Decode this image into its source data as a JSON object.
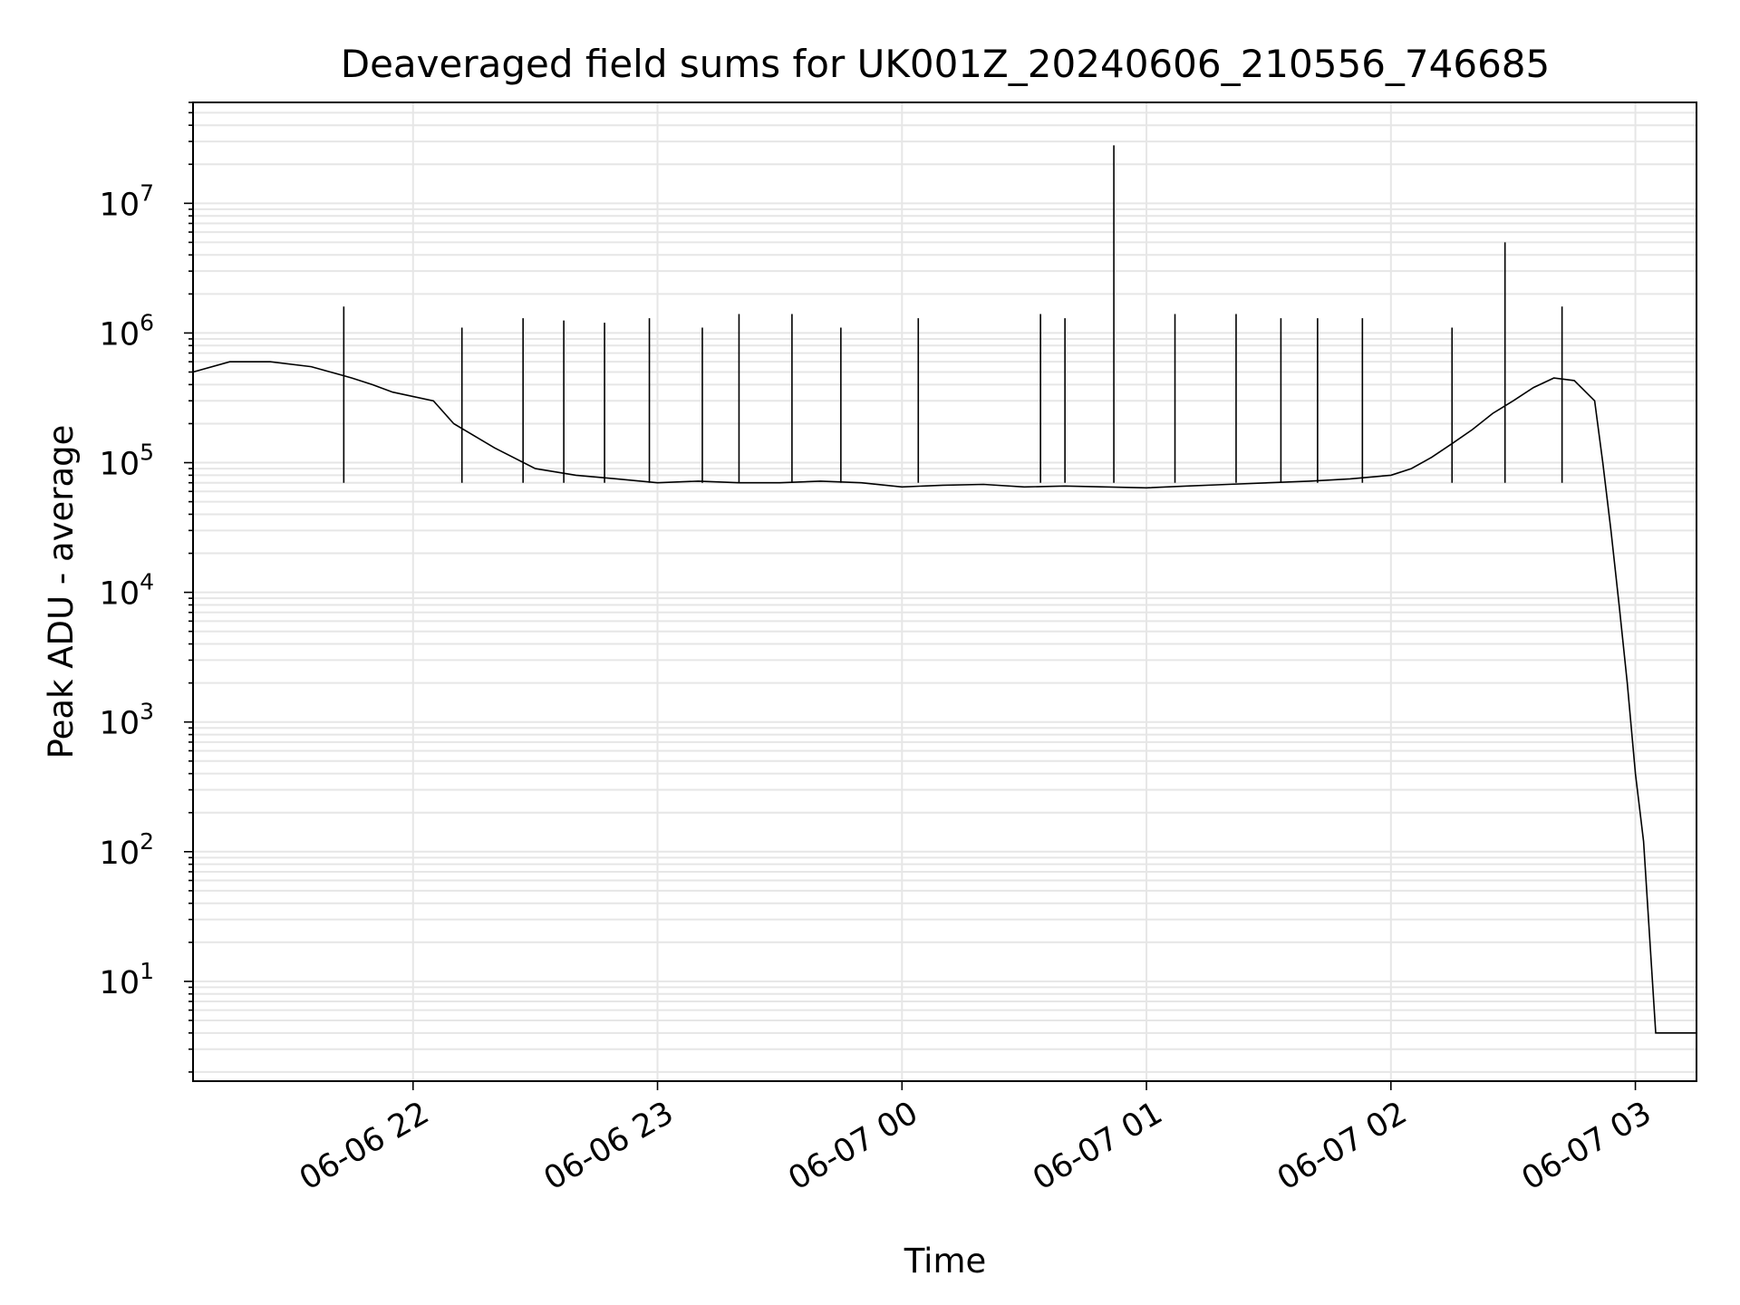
{
  "chart_data": {
    "type": "line",
    "title": "Deaveraged field sums for UK001Z_20240606_210556_746685",
    "xlabel": "Time",
    "ylabel": "Peak ADU - average",
    "yscale": "log",
    "xlim": [
      "2024-06-06 21:06",
      "2024-06-07 03:15"
    ],
    "ylim": [
      1.7,
      60000000
    ],
    "x_ticks": [
      {
        "label": "06-06 22",
        "value": "2024-06-06 22:00"
      },
      {
        "label": "06-06 23",
        "value": "2024-06-06 23:00"
      },
      {
        "label": "06-07 00",
        "value": "2024-06-07 00:00"
      },
      {
        "label": "06-07 01",
        "value": "2024-06-07 01:00"
      },
      {
        "label": "06-07 02",
        "value": "2024-06-07 02:00"
      },
      {
        "label": "06-07 03",
        "value": "2024-06-07 03:00"
      }
    ],
    "y_ticks": [
      {
        "base": "10",
        "exp": "1",
        "value": 10
      },
      {
        "base": "10",
        "exp": "2",
        "value": 100
      },
      {
        "base": "10",
        "exp": "3",
        "value": 1000
      },
      {
        "base": "10",
        "exp": "4",
        "value": 10000
      },
      {
        "base": "10",
        "exp": "5",
        "value": 100000
      },
      {
        "base": "10",
        "exp": "6",
        "value": 1000000
      },
      {
        "base": "10",
        "exp": "7",
        "value": 10000000
      }
    ],
    "grid": true,
    "line_color": "#000000",
    "grid_color": "#e6e6e6",
    "series": [
      {
        "x": [
          "2024-06-06 21:06",
          "2024-06-06 21:15",
          "2024-06-06 21:25",
          "2024-06-06 21:35",
          "2024-06-06 21:45",
          "2024-06-06 21:50",
          "2024-06-06 21:55",
          "2024-06-06 22:05",
          "2024-06-06 22:10",
          "2024-06-06 22:20",
          "2024-06-06 22:30",
          "2024-06-06 22:40",
          "2024-06-06 22:50",
          "2024-06-06 23:00",
          "2024-06-06 23:10",
          "2024-06-06 23:20",
          "2024-06-06 23:30",
          "2024-06-06 23:40",
          "2024-06-06 23:50",
          "2024-06-07 00:00",
          "2024-06-07 00:10",
          "2024-06-07 00:20",
          "2024-06-07 00:30",
          "2024-06-07 00:40",
          "2024-06-07 00:50",
          "2024-06-07 01:00",
          "2024-06-07 01:10",
          "2024-06-07 01:20",
          "2024-06-07 01:30",
          "2024-06-07 01:40",
          "2024-06-07 01:50",
          "2024-06-07 02:00",
          "2024-06-07 02:05",
          "2024-06-07 02:10",
          "2024-06-07 02:15",
          "2024-06-07 02:20",
          "2024-06-07 02:25",
          "2024-06-07 02:30",
          "2024-06-07 02:35",
          "2024-06-07 02:40",
          "2024-06-07 02:45",
          "2024-06-07 02:50",
          "2024-06-07 02:52",
          "2024-06-07 02:54",
          "2024-06-07 02:56",
          "2024-06-07 02:58",
          "2024-06-07 03:00",
          "2024-06-07 03:02",
          "2024-06-07 03:05",
          "2024-06-07 03:10",
          "2024-06-07 03:15"
        ],
        "y": [
          500000,
          600000,
          600000,
          550000,
          450000,
          400000,
          350000,
          300000,
          200000,
          130000,
          90000,
          80000,
          75000,
          70000,
          72000,
          70000,
          70000,
          72000,
          70000,
          65000,
          67000,
          68000,
          65000,
          66000,
          65000,
          64000,
          66000,
          68000,
          70000,
          72000,
          75000,
          80000,
          90000,
          110000,
          140000,
          180000,
          240000,
          300000,
          380000,
          450000,
          430000,
          300000,
          100000,
          30000,
          8000,
          2000,
          400,
          120,
          4,
          4,
          4
        ]
      }
    ],
    "spikes": {
      "x": [
        "2024-06-06 21:43",
        "2024-06-06 22:12",
        "2024-06-06 22:27",
        "2024-06-06 22:37",
        "2024-06-06 22:47",
        "2024-06-06 22:58",
        "2024-06-06 23:11",
        "2024-06-06 23:20",
        "2024-06-06 23:33",
        "2024-06-06 23:45",
        "2024-06-07 00:04",
        "2024-06-07 00:34",
        "2024-06-07 00:40",
        "2024-06-07 00:52",
        "2024-06-07 01:07",
        "2024-06-07 01:22",
        "2024-06-07 01:33",
        "2024-06-07 01:42",
        "2024-06-07 01:53",
        "2024-06-07 02:15",
        "2024-06-07 02:28",
        "2024-06-07 02:42"
      ],
      "y": [
        1600000,
        1100000,
        1300000,
        1250000,
        1200000,
        1300000,
        1100000,
        1400000,
        1400000,
        1100000,
        1300000,
        1400000,
        1300000,
        28000000,
        1400000,
        1400000,
        1300000,
        1300000,
        1300000,
        1100000,
        5000000,
        1600000
      ]
    }
  }
}
